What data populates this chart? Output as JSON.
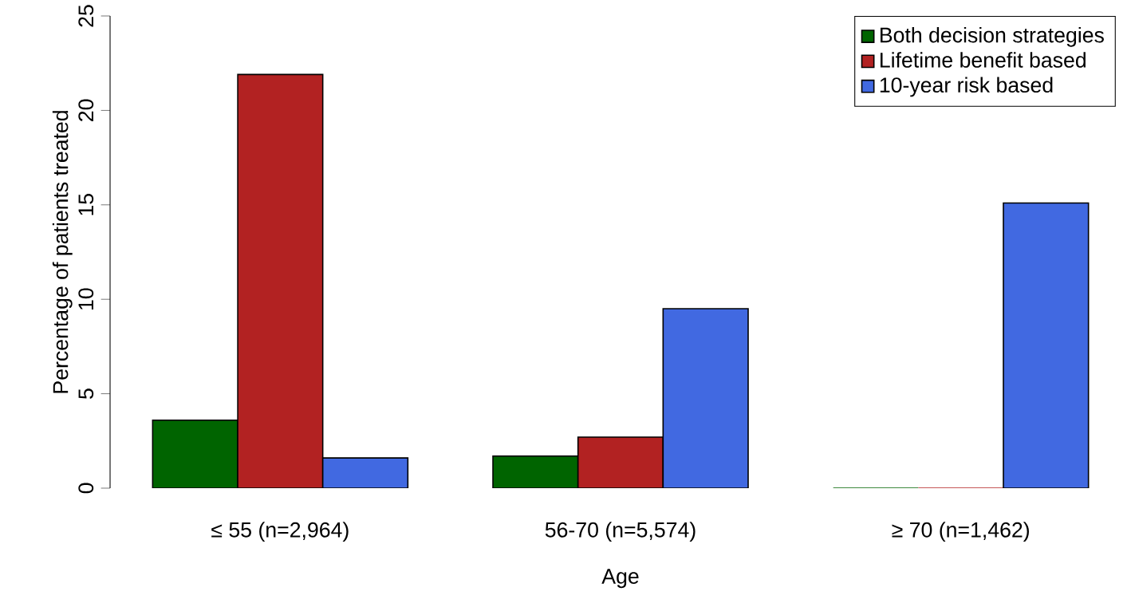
{
  "chart_data": {
    "type": "bar",
    "xlabel": "Age",
    "ylabel": "Percentage of patients treated",
    "categories": [
      "≤ 55 (n=2,964)",
      "56-70 (n=5,574)",
      "≥ 70 (n=1,462)"
    ],
    "series": [
      {
        "name": "Both decision strategies",
        "color": "#006400",
        "values": [
          3.6,
          1.7,
          0
        ]
      },
      {
        "name": "Lifetime benefit based",
        "color": "#b22222",
        "values": [
          21.9,
          2.7,
          0
        ]
      },
      {
        "name": "10-year risk based",
        "color": "#4169e1",
        "values": [
          1.6,
          9.5,
          15.1
        ]
      }
    ],
    "ylim": [
      0,
      25
    ],
    "yticks": [
      0,
      5,
      10,
      15,
      20,
      25
    ],
    "legend": "top right",
    "grid": false
  }
}
